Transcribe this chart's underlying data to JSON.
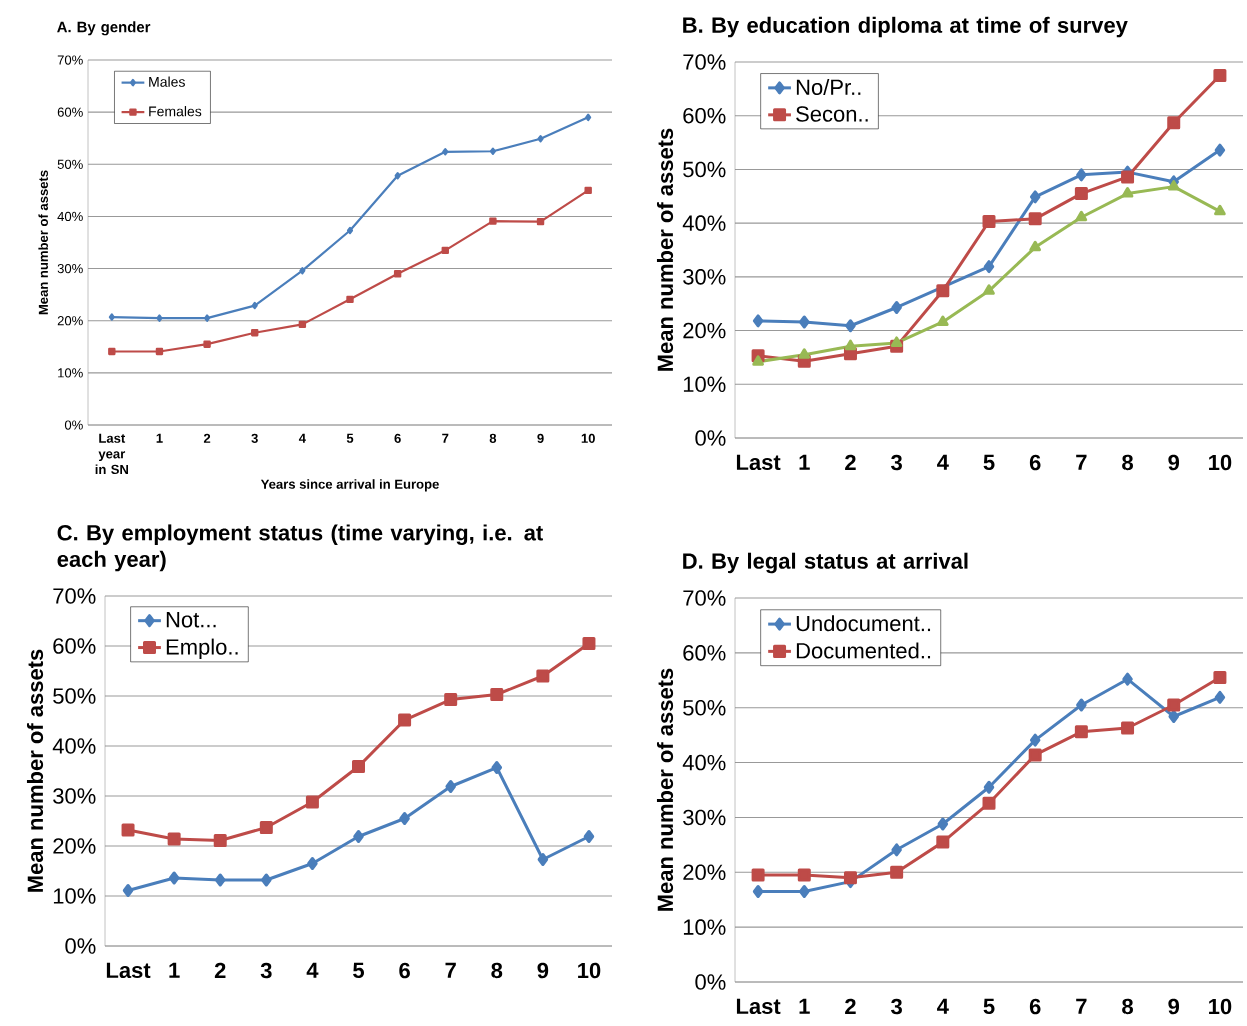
{
  "chart_data": [
    {
      "type": "line",
      "title": "A.   By gender",
      "ylabel": "Mean number of assets",
      "xlabel": "Years since arrival in Europe",
      "categories": [
        "Last year in SN",
        "1",
        "2",
        "3",
        "4",
        "5",
        "6",
        "7",
        "8",
        "9",
        "10"
      ],
      "ylim": [
        0,
        70
      ],
      "yticks": [
        {
          "value": 0,
          "label": "0%"
        },
        {
          "value": 10,
          "label": "10%"
        },
        {
          "value": 20,
          "label": "20%"
        },
        {
          "value": 30,
          "label": "30%"
        },
        {
          "value": 40,
          "label": "40%"
        },
        {
          "value": 50,
          "label": "50%"
        },
        {
          "value": 60,
          "label": "60%"
        },
        {
          "value": 70,
          "label": "70%"
        }
      ],
      "grid": "y",
      "legend": "top left",
      "series": [
        {
          "name": "Males",
          "color": "#4a7ebb",
          "marker": "diamond",
          "values": [
            20.7,
            20.5,
            20.5,
            22.9,
            29.6,
            37.3,
            47.8,
            52.4,
            52.5,
            54.9,
            59.0
          ]
        },
        {
          "name": "Females",
          "color": "#be4b48",
          "marker": "square",
          "values": [
            14.1,
            14.1,
            15.5,
            17.7,
            19.3,
            24.1,
            29.0,
            33.5,
            39.1,
            39.0,
            45.0
          ]
        }
      ]
    },
    {
      "type": "line",
      "title": "B.   By education diploma at time of survey",
      "ylabel": "Mean number of assets",
      "categories": [
        "Last",
        "1",
        "2",
        "3",
        "4",
        "5",
        "6",
        "7",
        "8",
        "9",
        "10"
      ],
      "ylim": [
        0,
        70
      ],
      "yticks": [
        {
          "value": 0,
          "label": "0%"
        },
        {
          "value": 10,
          "label": "10%"
        },
        {
          "value": 20,
          "label": "20%"
        },
        {
          "value": 30,
          "label": "30%"
        },
        {
          "value": 40,
          "label": "40%"
        },
        {
          "value": 50,
          "label": "50%"
        },
        {
          "value": 60,
          "label": "60%"
        },
        {
          "value": 70,
          "label": "70%"
        }
      ],
      "grid": "y",
      "legend": "top left",
      "series": [
        {
          "name": "No/Pr..",
          "color": "#4a7ebb",
          "marker": "diamond",
          "values": [
            21.8,
            21.6,
            20.9,
            24.3,
            null,
            31.9,
            44.9,
            49.0,
            49.5,
            47.7,
            53.6
          ]
        },
        {
          "name": "Secon..",
          "color": "#be4b48",
          "marker": "square",
          "values": [
            15.3,
            14.3,
            15.7,
            17.1,
            27.4,
            40.3,
            40.8,
            45.5,
            48.6,
            58.7,
            67.5
          ]
        },
        {
          "color": "#98b954",
          "marker": "triangle",
          "values": [
            14.2,
            15.5,
            17.1,
            17.7,
            21.6,
            27.4,
            35.5,
            41.1,
            45.5,
            46.8,
            42.2
          ]
        }
      ]
    },
    {
      "type": "line",
      "title": "C.   By employment status (time varying, i.e. at each year)",
      "ylabel": "Mean number of assets",
      "categories": [
        "Last",
        "1",
        "2",
        "3",
        "4",
        "5",
        "6",
        "7",
        "8",
        "9",
        "10"
      ],
      "ylim": [
        0,
        70
      ],
      "yticks": [
        {
          "value": 0,
          "label": "0%"
        },
        {
          "value": 10,
          "label": "10%"
        },
        {
          "value": 20,
          "label": "20%"
        },
        {
          "value": 30,
          "label": "30%"
        },
        {
          "value": 40,
          "label": "40%"
        },
        {
          "value": 50,
          "label": "50%"
        },
        {
          "value": 60,
          "label": "60%"
        },
        {
          "value": 70,
          "label": "70%"
        }
      ],
      "grid": "y",
      "legend": "top left",
      "series": [
        {
          "name": "Not...",
          "color": "#4a7ebb",
          "marker": "diamond",
          "values": [
            11.1,
            13.6,
            13.2,
            13.2,
            16.5,
            21.9,
            25.5,
            31.9,
            35.7,
            17.3,
            21.9
          ]
        },
        {
          "name": "Emplo..",
          "color": "#be4b48",
          "marker": "square",
          "values": [
            23.2,
            21.4,
            21.1,
            23.7,
            28.8,
            35.9,
            45.2,
            49.3,
            50.3,
            54.0,
            60.5
          ]
        }
      ]
    },
    {
      "type": "line",
      "title": "D.   By legal status at arrival",
      "ylabel": "Mean number of assets",
      "categories": [
        "Last",
        "1",
        "2",
        "3",
        "4",
        "5",
        "6",
        "7",
        "8",
        "9",
        "10"
      ],
      "ylim": [
        0,
        70
      ],
      "yticks": [
        {
          "value": 0,
          "label": "0%"
        },
        {
          "value": 10,
          "label": "10%"
        },
        {
          "value": 20,
          "label": "20%"
        },
        {
          "value": 30,
          "label": "30%"
        },
        {
          "value": 40,
          "label": "40%"
        },
        {
          "value": 50,
          "label": "50%"
        },
        {
          "value": 60,
          "label": "60%"
        },
        {
          "value": 70,
          "label": "70%"
        }
      ],
      "grid": "y",
      "legend": "top left",
      "series": [
        {
          "name": "Undocument..",
          "color": "#4a7ebb",
          "marker": "diamond",
          "values": [
            16.5,
            16.5,
            18.3,
            24.1,
            28.8,
            35.5,
            44.1,
            50.5,
            55.2,
            48.4,
            51.9
          ]
        },
        {
          "name": "Documented..",
          "color": "#be4b48",
          "marker": "square",
          "values": [
            19.5,
            19.5,
            19.0,
            20.0,
            25.5,
            32.6,
            41.4,
            45.6,
            46.3,
            50.5,
            55.5
          ]
        }
      ]
    }
  ]
}
